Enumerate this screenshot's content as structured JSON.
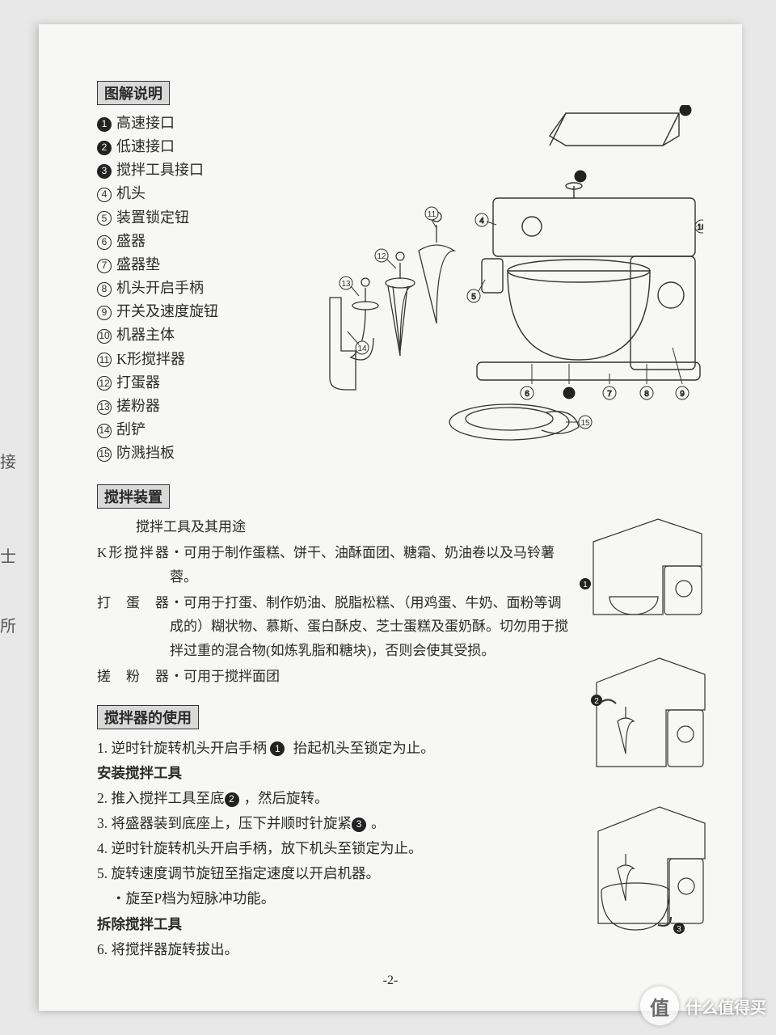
{
  "edge": {
    "a": "接",
    "b": "士",
    "c": "所"
  },
  "section1": {
    "heading": "图解说明",
    "items": [
      {
        "n": "1",
        "label": "高速接口",
        "filled": true
      },
      {
        "n": "2",
        "label": "低速接口",
        "filled": true
      },
      {
        "n": "3",
        "label": "搅拌工具接口",
        "filled": true
      },
      {
        "n": "4",
        "label": "机头",
        "filled": false
      },
      {
        "n": "5",
        "label": "装置锁定钮",
        "filled": false
      },
      {
        "n": "6",
        "label": "盛器",
        "filled": false
      },
      {
        "n": "7",
        "label": "盛器垫",
        "filled": false
      },
      {
        "n": "8",
        "label": "机头开启手柄",
        "filled": false
      },
      {
        "n": "9",
        "label": "开关及速度旋钮",
        "filled": false
      },
      {
        "n": "10",
        "label": "机器主体",
        "filled": false
      },
      {
        "n": "11",
        "label": "K形搅拌器",
        "filled": false
      },
      {
        "n": "12",
        "label": "打蛋器",
        "filled": false
      },
      {
        "n": "13",
        "label": "搓粉器",
        "filled": false
      },
      {
        "n": "14",
        "label": "刮铲",
        "filled": false
      },
      {
        "n": "15",
        "label": "防溅挡板",
        "filled": false
      }
    ]
  },
  "section2": {
    "heading": "搅拌装置",
    "subheading": "搅拌工具及其用途",
    "rows": [
      {
        "label": "K形搅拌器",
        "desc": "・可用于制作蛋糕、饼干、油酥面团、糖霜、奶油卷以及马铃薯蓉。"
      },
      {
        "label": "打蛋器",
        "desc": "・可用于打蛋、制作奶油、脱脂松糕、（用鸡蛋、牛奶、面粉等调成的）糊状物、慕斯、蛋白酥皮、芝士蛋糕及蛋奶酥。切勿用于搅 拌过重的混合物(如炼乳脂和糖块)，否则会使其受损。"
      },
      {
        "label": "搓粉器",
        "desc": "・可用于搅拌面团"
      }
    ]
  },
  "section3": {
    "heading": "搅拌器的使用",
    "line1_pre": "1. 逆时针旋转机头开启手柄 ",
    "line1_num": "1",
    "line1_post": " 抬起机头至锁定为止。",
    "sub1": "安装搅拌工具",
    "line2_pre": "2. 推入搅拌工具至底",
    "line2_num": "2",
    "line2_post": "，然后旋转。",
    "line3_pre": "3. 将盛器装到底座上，压下并顺时针旋紧",
    "line3_num": "3",
    "line3_post": "。",
    "line4": "4. 逆时针旋转机头开启手柄，放下机头至锁定为止。",
    "line5": "5. 旋转速度调节旋钮至指定速度以开启机器。",
    "line5b": "・旋至P档为短脉冲功能。",
    "sub2": "拆除搅拌工具",
    "line6": "6. 将搅拌器旋转拔出。"
  },
  "pageNumber": "-2-",
  "watermark": {
    "badge": "值",
    "text": "什么值得买"
  },
  "diagram": {
    "stroke": "#333",
    "fill": "#f7f7f5",
    "callouts": [
      "1",
      "2",
      "3",
      "4",
      "5",
      "6",
      "7",
      "8",
      "9",
      "10",
      "11",
      "12",
      "13",
      "14",
      "15"
    ]
  }
}
